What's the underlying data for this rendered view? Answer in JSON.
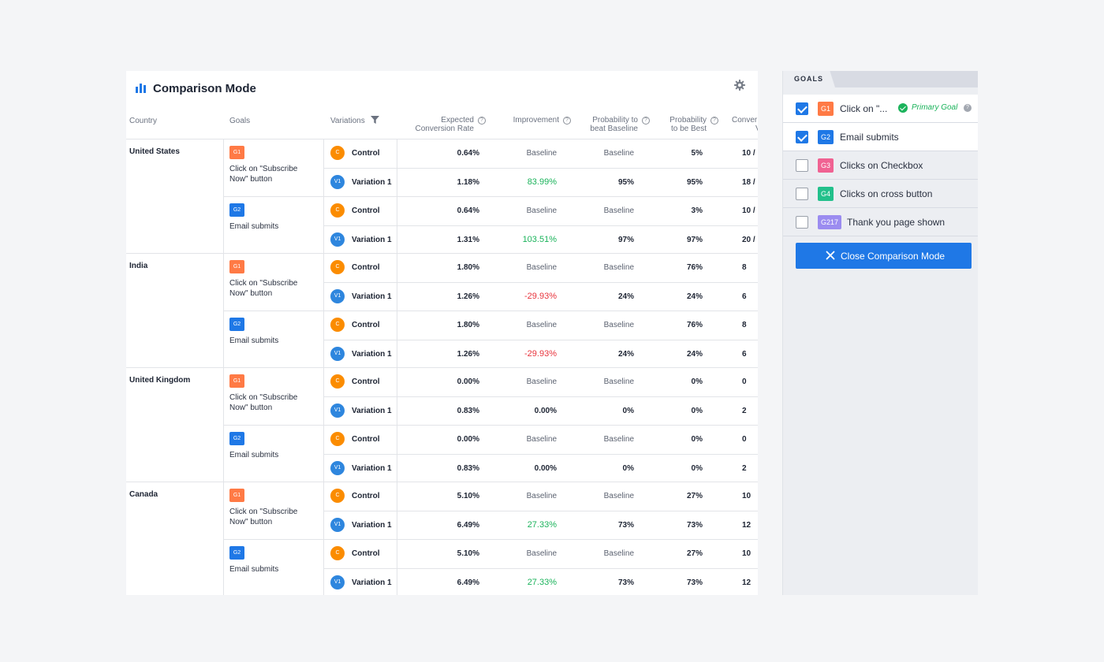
{
  "app": {
    "title": "Comparison Mode"
  },
  "table": {
    "headers": {
      "country": "Country",
      "goals": "Goals",
      "variations": "Variations",
      "rate_line1": "Expected",
      "rate_line2": "Conversion Rate",
      "improvement": "Improvement",
      "beat_line1": "Probability to",
      "beat_line2": "beat Baseline",
      "best_line1": "Probability",
      "best_line2": "to be Best",
      "conv_line1": "Conver",
      "conv_line2": "V"
    },
    "countries": [
      {
        "name": "United States",
        "goals": [
          {
            "badge": "G1",
            "name": "Click on \"Subscribe Now\" button",
            "rows": [
              {
                "badge": "C",
                "name": "Control",
                "rate": "0.64%",
                "improvement": "Baseline",
                "beat": "Baseline",
                "best": "5%",
                "conv": "10 /"
              },
              {
                "badge": "V1",
                "name": "Variation 1",
                "rate": "1.18%",
                "improvement": "83.99%",
                "beat": "95%",
                "best": "95%",
                "conv": "18 /"
              }
            ]
          },
          {
            "badge": "G2",
            "name": "Email submits",
            "rows": [
              {
                "badge": "C",
                "name": "Control",
                "rate": "0.64%",
                "improvement": "Baseline",
                "beat": "Baseline",
                "best": "3%",
                "conv": "10 /"
              },
              {
                "badge": "V1",
                "name": "Variation 1",
                "rate": "1.31%",
                "improvement": "103.51%",
                "beat": "97%",
                "best": "97%",
                "conv": "20 /"
              }
            ]
          }
        ]
      },
      {
        "name": "India",
        "goals": [
          {
            "badge": "G1",
            "name": "Click on \"Subscribe Now\" button",
            "rows": [
              {
                "badge": "C",
                "name": "Control",
                "rate": "1.80%",
                "improvement": "Baseline",
                "beat": "Baseline",
                "best": "76%",
                "conv": "8"
              },
              {
                "badge": "V1",
                "name": "Variation 1",
                "rate": "1.26%",
                "improvement": "-29.93%",
                "beat": "24%",
                "best": "24%",
                "conv": "6"
              }
            ]
          },
          {
            "badge": "G2",
            "name": "Email submits",
            "rows": [
              {
                "badge": "C",
                "name": "Control",
                "rate": "1.80%",
                "improvement": "Baseline",
                "beat": "Baseline",
                "best": "76%",
                "conv": "8"
              },
              {
                "badge": "V1",
                "name": "Variation 1",
                "rate": "1.26%",
                "improvement": "-29.93%",
                "beat": "24%",
                "best": "24%",
                "conv": "6"
              }
            ]
          }
        ]
      },
      {
        "name": "United Kingdom",
        "goals": [
          {
            "badge": "G1",
            "name": "Click on \"Subscribe Now\" button",
            "rows": [
              {
                "badge": "C",
                "name": "Control",
                "rate": "0.00%",
                "improvement": "Baseline",
                "beat": "Baseline",
                "best": "0%",
                "conv": "0"
              },
              {
                "badge": "V1",
                "name": "Variation 1",
                "rate": "0.83%",
                "improvement": "0.00%",
                "beat": "0%",
                "best": "0%",
                "conv": "2"
              }
            ]
          },
          {
            "badge": "G2",
            "name": "Email submits",
            "rows": [
              {
                "badge": "C",
                "name": "Control",
                "rate": "0.00%",
                "improvement": "Baseline",
                "beat": "Baseline",
                "best": "0%",
                "conv": "0"
              },
              {
                "badge": "V1",
                "name": "Variation 1",
                "rate": "0.83%",
                "improvement": "0.00%",
                "beat": "0%",
                "best": "0%",
                "conv": "2"
              }
            ]
          }
        ]
      },
      {
        "name": "Canada",
        "goals": [
          {
            "badge": "G1",
            "name": "Click on \"Subscribe Now\" button",
            "rows": [
              {
                "badge": "C",
                "name": "Control",
                "rate": "5.10%",
                "improvement": "Baseline",
                "beat": "Baseline",
                "best": "27%",
                "conv": "10"
              },
              {
                "badge": "V1",
                "name": "Variation 1",
                "rate": "6.49%",
                "improvement": "27.33%",
                "beat": "73%",
                "best": "73%",
                "conv": "12"
              }
            ]
          },
          {
            "badge": "G2",
            "name": "Email submits",
            "rows": [
              {
                "badge": "C",
                "name": "Control",
                "rate": "5.10%",
                "improvement": "Baseline",
                "beat": "Baseline",
                "best": "27%",
                "conv": "10"
              },
              {
                "badge": "V1",
                "name": "Variation 1",
                "rate": "6.49%",
                "improvement": "27.33%",
                "beat": "73%",
                "best": "73%",
                "conv": "12"
              }
            ]
          }
        ]
      }
    ]
  },
  "panel": {
    "tab": "GOALS",
    "primary_label": "Primary Goal",
    "items": [
      {
        "badge": "G1",
        "label": "Click on \"...",
        "checked": true,
        "color": "#ff7a45"
      },
      {
        "badge": "G2",
        "label": "Email submits",
        "checked": true,
        "color": "#1f78e6"
      },
      {
        "badge": "G3",
        "label": "Clicks on Checkbox",
        "checked": false,
        "color": "#f06292"
      },
      {
        "badge": "G4",
        "label": "Clicks on cross button",
        "checked": false,
        "color": "#22c08b"
      },
      {
        "badge": "G217",
        "label": "Thank you page shown",
        "checked": false,
        "color": "#9b8cf0"
      }
    ],
    "close_button": "Close Comparison Mode"
  },
  "colors": {
    "accent": "#1f78e6",
    "goal_g1": "#ff7a45",
    "goal_g2": "#1f78e6",
    "control_badge": "#fb8c00",
    "variation_badge": "#2e86de",
    "positive": "#1bb35b",
    "negative": "#e8333c"
  }
}
